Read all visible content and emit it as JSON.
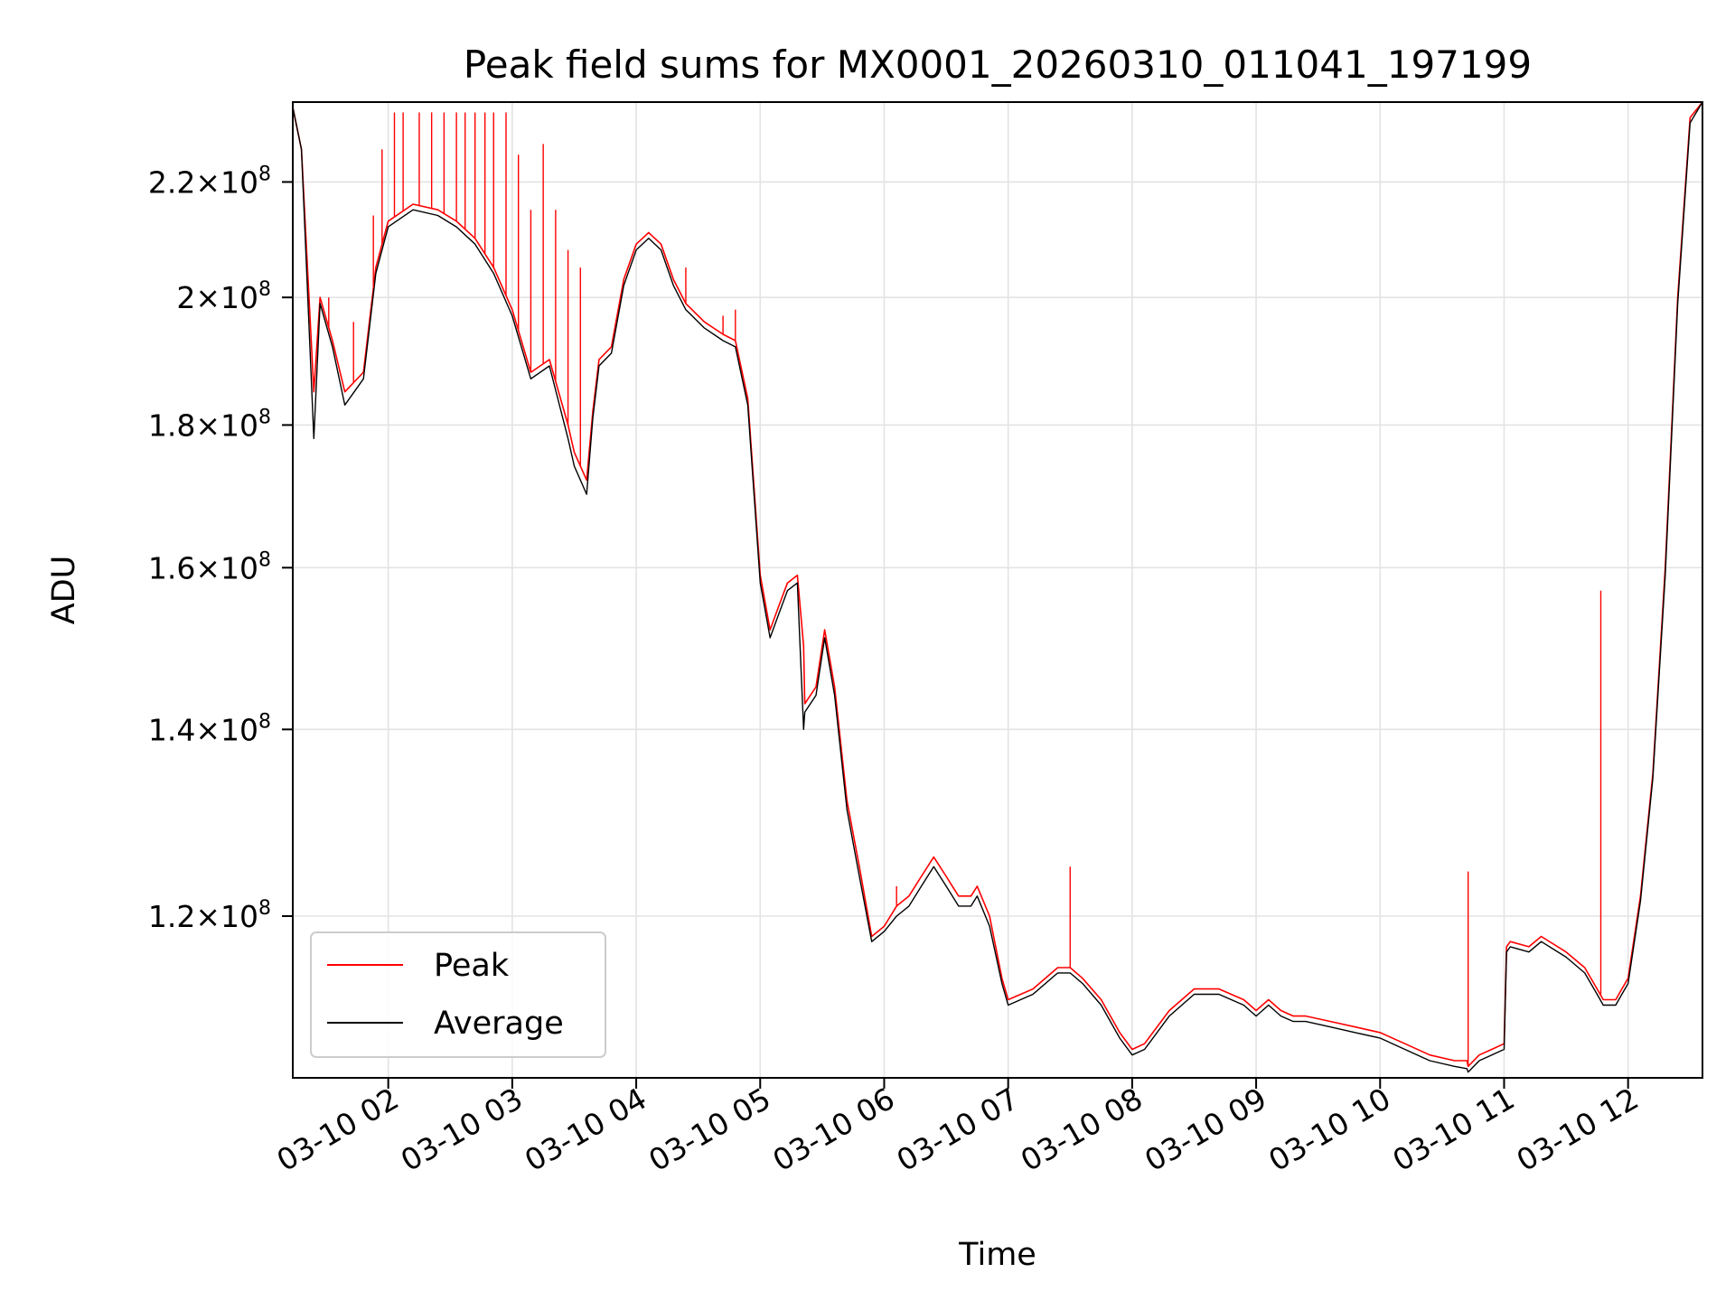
{
  "chart_data": {
    "type": "line",
    "title": "Peak field sums for MX0001_20260310_011041_197199",
    "xlabel": "Time",
    "ylabel": "ADU",
    "x_unit": "hour of 2026-03-10",
    "xlim": [
      1.23,
      12.6
    ],
    "ylim": [
      105000000,
      235000000
    ],
    "y_scale": "log",
    "grid": true,
    "legend": "lower-left",
    "x_ticks": [
      {
        "value": 2,
        "label": "03-10 02"
      },
      {
        "value": 3,
        "label": "03-10 03"
      },
      {
        "value": 4,
        "label": "03-10 04"
      },
      {
        "value": 5,
        "label": "03-10 05"
      },
      {
        "value": 6,
        "label": "03-10 06"
      },
      {
        "value": 7,
        "label": "03-10 07"
      },
      {
        "value": 8,
        "label": "03-10 08"
      },
      {
        "value": 9,
        "label": "03-10 09"
      },
      {
        "value": 10,
        "label": "03-10 10"
      },
      {
        "value": 11,
        "label": "03-10 11"
      },
      {
        "value": 12,
        "label": "03-10 12"
      }
    ],
    "y_ticks": [
      {
        "value": 120000000,
        "mantissa": "1.2",
        "exponent": "8"
      },
      {
        "value": 140000000,
        "mantissa": "1.4",
        "exponent": "8"
      },
      {
        "value": 160000000,
        "mantissa": "1.6",
        "exponent": "8"
      },
      {
        "value": 180000000,
        "mantissa": "1.8",
        "exponent": "8"
      },
      {
        "value": 200000000,
        "mantissa": "2",
        "exponent": "8"
      },
      {
        "value": 220000000,
        "mantissa": "2.2",
        "exponent": "8"
      }
    ],
    "series": [
      {
        "name": "Peak",
        "color": "#ff0000",
        "x": [
          1.23,
          1.3,
          1.4,
          1.45,
          1.55,
          1.65,
          1.8,
          1.9,
          2.0,
          2.2,
          2.4,
          2.55,
          2.7,
          2.85,
          3.0,
          3.15,
          3.3,
          3.45,
          3.5,
          3.6,
          3.65,
          3.7,
          3.8,
          3.9,
          4.0,
          4.1,
          4.2,
          4.3,
          4.4,
          4.55,
          4.7,
          4.8,
          4.9,
          5.0,
          5.08,
          5.15,
          5.22,
          5.3,
          5.35,
          5.36,
          5.45,
          5.52,
          5.6,
          5.7,
          5.8,
          5.9,
          6.0,
          6.1,
          6.2,
          6.3,
          6.4,
          6.5,
          6.55,
          6.6,
          6.7,
          6.75,
          6.85,
          6.95,
          7.0,
          7.2,
          7.4,
          7.5,
          7.6,
          7.75,
          7.9,
          8.0,
          8.1,
          8.3,
          8.5,
          8.7,
          8.9,
          9.0,
          9.1,
          9.2,
          9.3,
          9.4,
          9.6,
          9.8,
          10.0,
          10.2,
          10.4,
          10.6,
          10.7,
          10.71,
          10.8,
          10.9,
          11.0,
          11.02,
          11.05,
          11.2,
          11.3,
          11.5,
          11.65,
          11.75,
          11.8,
          11.9,
          11.95,
          12.0,
          12.1,
          12.2,
          12.3,
          12.4,
          12.5,
          12.6
        ],
        "y": [
          234000000,
          226000000,
          185000000,
          200000000,
          193000000,
          185000000,
          188000000,
          205000000,
          213000000,
          216000000,
          215000000,
          213000000,
          210000000,
          205000000,
          198000000,
          188000000,
          190000000,
          180000000,
          176000000,
          172000000,
          182000000,
          190000000,
          192000000,
          203000000,
          209000000,
          211000000,
          209000000,
          203000000,
          199000000,
          196000000,
          194000000,
          193000000,
          184000000,
          159000000,
          152000000,
          155000000,
          158000000,
          159000000,
          150000000,
          143000000,
          145000000,
          152000000,
          145000000,
          132000000,
          125000000,
          118000000,
          119000000,
          121000000,
          122000000,
          124000000,
          126000000,
          124000000,
          123000000,
          122000000,
          122000000,
          123000000,
          120000000,
          114000000,
          112000000,
          113000000,
          115000000,
          115000000,
          114000000,
          112000000,
          109000000,
          107500000,
          108000000,
          111000000,
          113000000,
          113000000,
          112000000,
          111000000,
          112000000,
          111000000,
          110500000,
          110500000,
          110000000,
          109500000,
          109000000,
          108000000,
          107000000,
          106500000,
          106500000,
          106000000,
          107000000,
          107500000,
          108000000,
          117000000,
          117500000,
          117000000,
          118000000,
          116500000,
          115000000,
          113000000,
          112000000,
          112000000,
          113000000,
          114000000,
          122000000,
          135000000,
          160000000,
          200000000,
          232000000,
          235000000
        ]
      },
      {
        "name": "Average",
        "color": "#000000",
        "x": [
          1.23,
          1.3,
          1.4,
          1.45,
          1.55,
          1.65,
          1.8,
          1.9,
          2.0,
          2.2,
          2.4,
          2.55,
          2.7,
          2.85,
          3.0,
          3.15,
          3.3,
          3.45,
          3.5,
          3.6,
          3.65,
          3.7,
          3.8,
          3.9,
          4.0,
          4.1,
          4.2,
          4.3,
          4.4,
          4.55,
          4.7,
          4.8,
          4.9,
          5.0,
          5.08,
          5.15,
          5.22,
          5.3,
          5.35,
          5.36,
          5.45,
          5.52,
          5.6,
          5.7,
          5.8,
          5.9,
          6.0,
          6.1,
          6.2,
          6.3,
          6.4,
          6.5,
          6.55,
          6.6,
          6.7,
          6.75,
          6.85,
          6.95,
          7.0,
          7.2,
          7.4,
          7.5,
          7.6,
          7.75,
          7.9,
          8.0,
          8.1,
          8.3,
          8.5,
          8.7,
          8.9,
          9.0,
          9.1,
          9.2,
          9.3,
          9.4,
          9.6,
          9.8,
          10.0,
          10.2,
          10.4,
          10.6,
          10.7,
          10.71,
          10.8,
          10.9,
          11.0,
          11.02,
          11.05,
          11.2,
          11.3,
          11.5,
          11.65,
          11.75,
          11.8,
          11.9,
          11.95,
          12.0,
          12.1,
          12.2,
          12.3,
          12.4,
          12.5,
          12.6
        ],
        "y": [
          234000000,
          226000000,
          178000000,
          199000000,
          192000000,
          183000000,
          187000000,
          204000000,
          212000000,
          215000000,
          214000000,
          212000000,
          209000000,
          204000000,
          197000000,
          187000000,
          189000000,
          178000000,
          174000000,
          170000000,
          181000000,
          189000000,
          191000000,
          202000000,
          208000000,
          210000000,
          208000000,
          202000000,
          198000000,
          195000000,
          193000000,
          192000000,
          183000000,
          158000000,
          151000000,
          154000000,
          157000000,
          158000000,
          140000000,
          142000000,
          144000000,
          151000000,
          144000000,
          131000000,
          124000000,
          117500000,
          118500000,
          120000000,
          121000000,
          123000000,
          125000000,
          123000000,
          122000000,
          121000000,
          121000000,
          122000000,
          119000000,
          113500000,
          111500000,
          112500000,
          114500000,
          114500000,
          113500000,
          111500000,
          108500000,
          107000000,
          107500000,
          110500000,
          112500000,
          112500000,
          111500000,
          110500000,
          111500000,
          110500000,
          110000000,
          110000000,
          109500000,
          109000000,
          108500000,
          107500000,
          106500000,
          106000000,
          105800000,
          105500000,
          106500000,
          107000000,
          107500000,
          116500000,
          117000000,
          116500000,
          117500000,
          116000000,
          114500000,
          112500000,
          111500000,
          111500000,
          112500000,
          113500000,
          121500000,
          134500000,
          159000000,
          199000000,
          231000000,
          235000000
        ]
      }
    ],
    "spikes": [
      {
        "series": "Peak",
        "x": 1.52,
        "y": 200000000
      },
      {
        "series": "Peak",
        "x": 1.72,
        "y": 196000000
      },
      {
        "series": "Peak",
        "x": 1.88,
        "y": 214000000
      },
      {
        "series": "Peak",
        "x": 1.95,
        "y": 226000000
      },
      {
        "series": "Peak",
        "x": 2.05,
        "y": 233000000
      },
      {
        "series": "Peak",
        "x": 2.12,
        "y": 233000000
      },
      {
        "series": "Peak",
        "x": 2.25,
        "y": 233000000
      },
      {
        "series": "Peak",
        "x": 2.35,
        "y": 233000000
      },
      {
        "series": "Peak",
        "x": 2.45,
        "y": 233000000
      },
      {
        "series": "Peak",
        "x": 2.55,
        "y": 233000000
      },
      {
        "series": "Peak",
        "x": 2.62,
        "y": 233000000
      },
      {
        "series": "Peak",
        "x": 2.7,
        "y": 233000000
      },
      {
        "series": "Peak",
        "x": 2.78,
        "y": 233000000
      },
      {
        "series": "Peak",
        "x": 2.85,
        "y": 233000000
      },
      {
        "series": "Peak",
        "x": 2.95,
        "y": 233000000
      },
      {
        "series": "Peak",
        "x": 3.05,
        "y": 225000000
      },
      {
        "series": "Peak",
        "x": 3.15,
        "y": 215000000
      },
      {
        "series": "Peak",
        "x": 3.25,
        "y": 227000000
      },
      {
        "series": "Peak",
        "x": 3.35,
        "y": 215000000
      },
      {
        "series": "Peak",
        "x": 3.45,
        "y": 208000000
      },
      {
        "series": "Peak",
        "x": 3.55,
        "y": 205000000
      },
      {
        "series": "Peak",
        "x": 4.4,
        "y": 205000000
      },
      {
        "series": "Peak",
        "x": 4.7,
        "y": 197000000
      },
      {
        "series": "Peak",
        "x": 4.8,
        "y": 198000000
      },
      {
        "series": "Peak",
        "x": 6.1,
        "y": 123000000
      },
      {
        "series": "Peak",
        "x": 7.5,
        "y": 125000000
      },
      {
        "series": "Peak",
        "x": 10.71,
        "y": 124500000
      },
      {
        "series": "Peak",
        "x": 11.78,
        "y": 157000000
      }
    ]
  }
}
